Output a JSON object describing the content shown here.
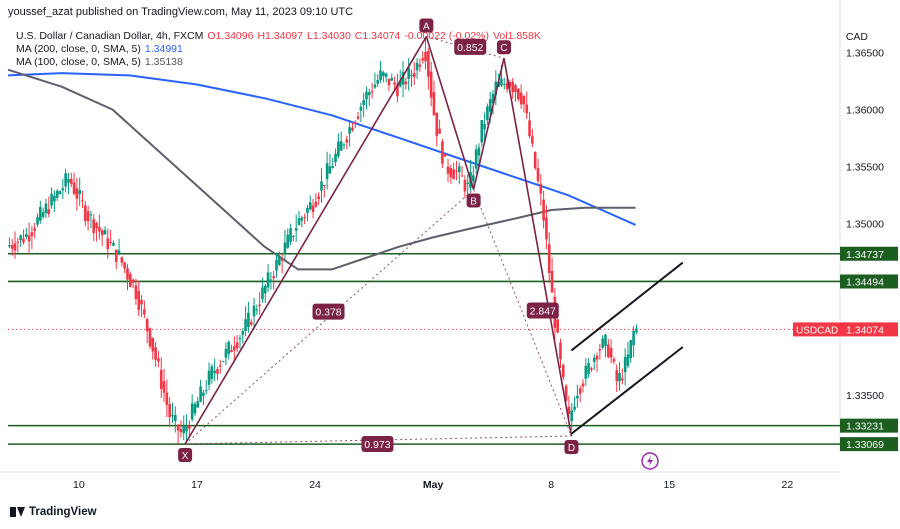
{
  "header": {
    "publisher_line": "youssef_azat published on TradingView.com, May 11, 2023 09:10 UTC"
  },
  "legend": {
    "symbol": "U.S. Dollar / Canadian Dollar, 4h, FXCM",
    "open": "O1.34096",
    "high": "H1.34097",
    "low": "L1.34030",
    "close": "C1.34074",
    "change": "-0.00022 (-0.02%)",
    "volume": "Vol1.858K",
    "ma200_label": "MA (200, close, 0, SMA, 5)",
    "ma200_value": "1.34991",
    "ma100_label": "MA (100, close, 0, SMA, 5)",
    "ma100_value": "1.35138"
  },
  "currency": "CAD",
  "footer": {
    "brand": "TradingView"
  },
  "colors": {
    "up": "#089981",
    "down": "#f23645",
    "ma200": "#2962ff",
    "ma100": "#5d606b",
    "pattern": "#7b2246",
    "hline": "#1b5e20",
    "price_tag": "#f23645"
  },
  "chart_data": {
    "type": "candlestick",
    "symbol": "USDCAD",
    "timeframe": "4h",
    "ylim": [
      1.33,
      1.3675
    ],
    "y_ticks": [
      "1.35000",
      "1.35500",
      "1.36000",
      "1.36500",
      "1.33500"
    ],
    "x_ticks": [
      {
        "label": "10",
        "day": 10
      },
      {
        "label": "17",
        "day": 17
      },
      {
        "label": "24",
        "day": 24
      },
      {
        "label": "May",
        "day": 31
      },
      {
        "label": "8",
        "day": 38
      },
      {
        "label": "15",
        "day": 45
      },
      {
        "label": "22",
        "day": 52
      }
    ],
    "price_path": [
      [
        5.8,
        1.348
      ],
      [
        7.0,
        1.349
      ],
      [
        8.5,
        1.352
      ],
      [
        9.5,
        1.354
      ],
      [
        10.5,
        1.351
      ],
      [
        11.5,
        1.349
      ],
      [
        12.5,
        1.347
      ],
      [
        13.5,
        1.344
      ],
      [
        14.5,
        1.339
      ],
      [
        15.5,
        1.333
      ],
      [
        16.2,
        1.3315
      ],
      [
        17.0,
        1.334
      ],
      [
        18.0,
        1.337
      ],
      [
        19.0,
        1.339
      ],
      [
        20.0,
        1.341
      ],
      [
        21.0,
        1.344
      ],
      [
        22.0,
        1.347
      ],
      [
        23.0,
        1.35
      ],
      [
        24.0,
        1.352
      ],
      [
        25.0,
        1.355
      ],
      [
        26.0,
        1.358
      ],
      [
        27.0,
        1.361
      ],
      [
        28.0,
        1.363
      ],
      [
        29.0,
        1.362
      ],
      [
        30.0,
        1.3635
      ],
      [
        30.6,
        1.3655
      ],
      [
        31.2,
        1.359
      ],
      [
        31.8,
        1.355
      ],
      [
        32.5,
        1.3545
      ],
      [
        33.2,
        1.353
      ],
      [
        34.0,
        1.3585
      ],
      [
        34.8,
        1.362
      ],
      [
        35.6,
        1.3625
      ],
      [
        36.4,
        1.361
      ],
      [
        37.0,
        1.356
      ],
      [
        37.6,
        1.351
      ],
      [
        38.1,
        1.344
      ],
      [
        38.6,
        1.338
      ],
      [
        39.1,
        1.3325
      ],
      [
        39.6,
        1.3355
      ],
      [
        40.2,
        1.337
      ],
      [
        40.8,
        1.339
      ],
      [
        41.4,
        1.3395
      ],
      [
        42.0,
        1.336
      ],
      [
        42.6,
        1.338
      ],
      [
        43.0,
        1.3407
      ]
    ],
    "ma200": [
      [
        5.8,
        1.363
      ],
      [
        9,
        1.3632
      ],
      [
        13,
        1.363
      ],
      [
        17,
        1.3622
      ],
      [
        21,
        1.361
      ],
      [
        25,
        1.3595
      ],
      [
        29,
        1.3575
      ],
      [
        33,
        1.3555
      ],
      [
        36,
        1.354
      ],
      [
        39,
        1.3525
      ],
      [
        41,
        1.3512
      ],
      [
        43,
        1.3499
      ]
    ],
    "ma100": [
      [
        5.8,
        1.3635
      ],
      [
        9,
        1.362
      ],
      [
        12,
        1.36
      ],
      [
        15,
        1.356
      ],
      [
        18,
        1.352
      ],
      [
        21,
        1.348
      ],
      [
        23,
        1.346
      ],
      [
        25,
        1.346
      ],
      [
        27,
        1.347
      ],
      [
        29,
        1.348
      ],
      [
        31,
        1.3488
      ],
      [
        33,
        1.3495
      ],
      [
        36,
        1.3505
      ],
      [
        38,
        1.3512
      ],
      [
        40,
        1.3514
      ],
      [
        43,
        1.3514
      ]
    ],
    "horizontal_lines": [
      {
        "price": 1.34737,
        "label": "1.34737"
      },
      {
        "price": 1.34494,
        "label": "1.34494"
      },
      {
        "price": 1.33231,
        "label": "1.33231"
      },
      {
        "price": 1.33069,
        "label": "1.33069"
      }
    ],
    "current_price": {
      "symbol": "USDCAD",
      "price": 1.34074,
      "label": "1.34074"
    },
    "harmonic_pattern": {
      "points": [
        {
          "label": "X",
          "day": 16.3,
          "price": 1.3307
        },
        {
          "label": "A",
          "day": 30.6,
          "price": 1.3664
        },
        {
          "label": "B",
          "day": 33.4,
          "price": 1.353
        },
        {
          "label": "C",
          "day": 35.2,
          "price": 1.3645
        },
        {
          "label": "D",
          "day": 39.2,
          "price": 1.3314
        }
      ],
      "ratios": [
        {
          "label": "0.378",
          "day": 24.8,
          "price": 1.3423
        },
        {
          "label": "0.852",
          "day": 33.2,
          "price": 1.3655
        },
        {
          "label": "2.847",
          "day": 37.5,
          "price": 1.3424
        },
        {
          "label": "0.973",
          "day": 27.7,
          "price": 1.3307
        }
      ]
    },
    "channel": [
      {
        "from": [
          39.2,
          1.3389
        ],
        "to": [
          45.8,
          1.3466
        ]
      },
      {
        "from": [
          39.2,
          1.3316
        ],
        "to": [
          45.8,
          1.3392
        ]
      }
    ]
  }
}
